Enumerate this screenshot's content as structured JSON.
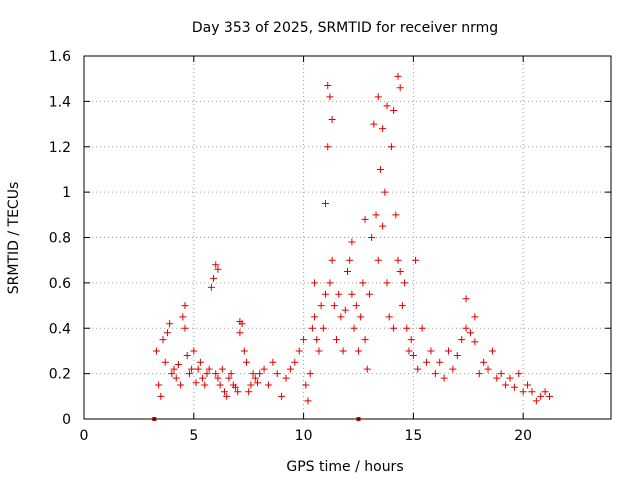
{
  "chart_data": {
    "type": "scatter",
    "title": "Day 353 of 2025, SRMTID for receiver nrmg",
    "xlabel": "GPS time / hours",
    "ylabel": "SRMTID / TECUs",
    "xlim": [
      0,
      24
    ],
    "ylim": [
      0,
      1.6
    ],
    "xticks": [
      0,
      5,
      10,
      15,
      20
    ],
    "xtick_labels": [
      "0",
      "5",
      "10",
      "15",
      "20"
    ],
    "yticks": [
      0,
      0.2,
      0.4,
      0.6,
      0.8,
      1.0,
      1.2,
      1.4,
      1.6
    ],
    "ytick_labels": [
      "0",
      "0.2",
      "0.4",
      "0.6",
      "0.8",
      "1",
      "1.2",
      "1.4",
      "1.6"
    ],
    "grid": true,
    "legend": "none",
    "marker": "plus",
    "color": "#e00000",
    "series": [
      {
        "name": "SRMTID",
        "x": [
          3.3,
          3.4,
          3.5,
          3.6,
          3.7,
          3.8,
          3.9,
          4.0,
          4.1,
          4.2,
          4.3,
          4.4,
          4.5,
          4.6,
          4.7,
          4.8,
          4.9,
          5.0,
          5.1,
          5.2,
          5.3,
          5.4,
          5.5,
          5.6,
          5.7,
          5.8,
          5.9,
          6.0,
          6.1,
          6.2,
          6.3,
          6.4,
          6.5,
          6.6,
          6.7,
          6.8,
          6.9,
          7.0,
          7.1,
          7.2,
          7.3,
          7.4,
          7.5,
          7.6,
          7.7,
          7.8,
          7.9,
          8.0,
          8.2,
          8.4,
          8.6,
          8.8,
          9.0,
          9.2,
          9.4,
          9.6,
          9.8,
          10.0,
          10.1,
          10.2,
          10.3,
          10.4,
          10.5,
          10.6,
          10.7,
          10.8,
          10.9,
          11.0,
          11.1,
          11.2,
          11.3,
          11.4,
          11.5,
          11.6,
          11.7,
          11.8,
          11.9,
          12.0,
          12.1,
          12.2,
          12.3,
          12.4,
          12.5,
          12.6,
          12.7,
          12.8,
          12.9,
          13.0,
          13.1,
          13.2,
          13.3,
          13.4,
          13.5,
          13.6,
          13.7,
          13.8,
          13.9,
          14.0,
          14.1,
          14.2,
          14.3,
          14.4,
          14.5,
          14.6,
          14.7,
          14.8,
          14.9,
          15.0,
          15.2,
          15.4,
          15.6,
          15.8,
          16.0,
          16.2,
          16.4,
          16.6,
          16.8,
          17.0,
          17.2,
          17.4,
          17.6,
          17.8,
          18.0,
          18.2,
          18.4,
          18.6,
          18.8,
          19.0,
          19.2,
          19.4,
          19.6,
          19.8,
          20.0,
          20.2,
          20.4,
          20.6,
          20.8,
          21.0,
          21.2,
          3.2,
          12.5,
          6.0,
          6.1,
          11.1,
          11.2,
          11.3,
          13.4,
          14.3,
          14.4,
          13.8,
          11.0,
          12.2,
          13.6,
          14.1,
          15.1,
          17.4,
          17.8,
          4.6,
          7.1,
          10.5,
          12.8
        ],
        "y": [
          0.3,
          0.15,
          0.1,
          0.35,
          0.25,
          0.38,
          0.42,
          0.2,
          0.22,
          0.18,
          0.24,
          0.15,
          0.45,
          0.4,
          0.28,
          0.2,
          0.22,
          0.3,
          0.16,
          0.22,
          0.25,
          0.18,
          0.15,
          0.2,
          0.22,
          0.58,
          0.62,
          0.2,
          0.18,
          0.15,
          0.22,
          0.12,
          0.1,
          0.18,
          0.2,
          0.15,
          0.14,
          0.12,
          0.38,
          0.42,
          0.3,
          0.25,
          0.12,
          0.15,
          0.2,
          0.18,
          0.16,
          0.2,
          0.22,
          0.15,
          0.25,
          0.2,
          0.1,
          0.18,
          0.22,
          0.25,
          0.3,
          0.35,
          0.15,
          0.08,
          0.2,
          0.4,
          0.45,
          0.35,
          0.3,
          0.5,
          0.4,
          0.55,
          1.2,
          0.6,
          0.7,
          0.5,
          0.35,
          0.55,
          0.45,
          0.3,
          0.48,
          0.65,
          0.7,
          0.55,
          0.4,
          0.5,
          0.3,
          0.45,
          0.6,
          0.35,
          0.22,
          0.55,
          0.8,
          1.3,
          0.9,
          0.7,
          1.1,
          0.85,
          1.0,
          0.6,
          0.45,
          1.2,
          0.4,
          0.9,
          0.7,
          0.65,
          0.5,
          0.6,
          0.4,
          0.3,
          0.35,
          0.28,
          0.22,
          0.4,
          0.25,
          0.3,
          0.2,
          0.25,
          0.18,
          0.3,
          0.22,
          0.28,
          0.35,
          0.4,
          0.38,
          0.34,
          0.2,
          0.25,
          0.22,
          0.3,
          0.18,
          0.2,
          0.15,
          0.18,
          0.14,
          0.2,
          0.12,
          0.15,
          0.12,
          0.08,
          0.1,
          0.12,
          0.1,
          0.0,
          0.0,
          0.68,
          0.66,
          1.47,
          1.42,
          1.32,
          1.42,
          1.51,
          1.46,
          1.38,
          0.95,
          0.78,
          1.28,
          1.36,
          0.7,
          0.53,
          0.45,
          0.5,
          0.43,
          0.6,
          0.88
        ]
      }
    ]
  }
}
